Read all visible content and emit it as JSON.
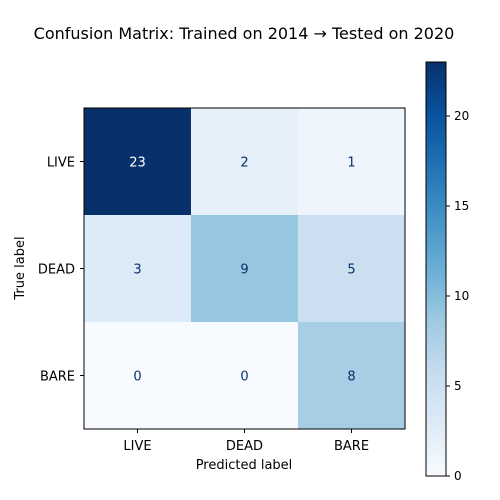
{
  "chart_data": {
    "type": "heatmap",
    "title": "Confusion Matrix: Trained on 2014 → Tested on 2020",
    "xlabel": "Predicted label",
    "ylabel": "True label",
    "x_categories": [
      "LIVE",
      "DEAD",
      "BARE"
    ],
    "y_categories": [
      "LIVE",
      "DEAD",
      "BARE"
    ],
    "values": [
      [
        23,
        2,
        1
      ],
      [
        3,
        9,
        5
      ],
      [
        0,
        0,
        8
      ]
    ],
    "colormap": "Blues",
    "colorbar": {
      "min": 0,
      "max": 23,
      "ticks": [
        0,
        5,
        10,
        15,
        20
      ]
    },
    "grid": false
  },
  "colors": {
    "low": "#f7fbff",
    "high": "#08306b",
    "dark_text": "#08306b",
    "light_text": "#ffffff"
  }
}
